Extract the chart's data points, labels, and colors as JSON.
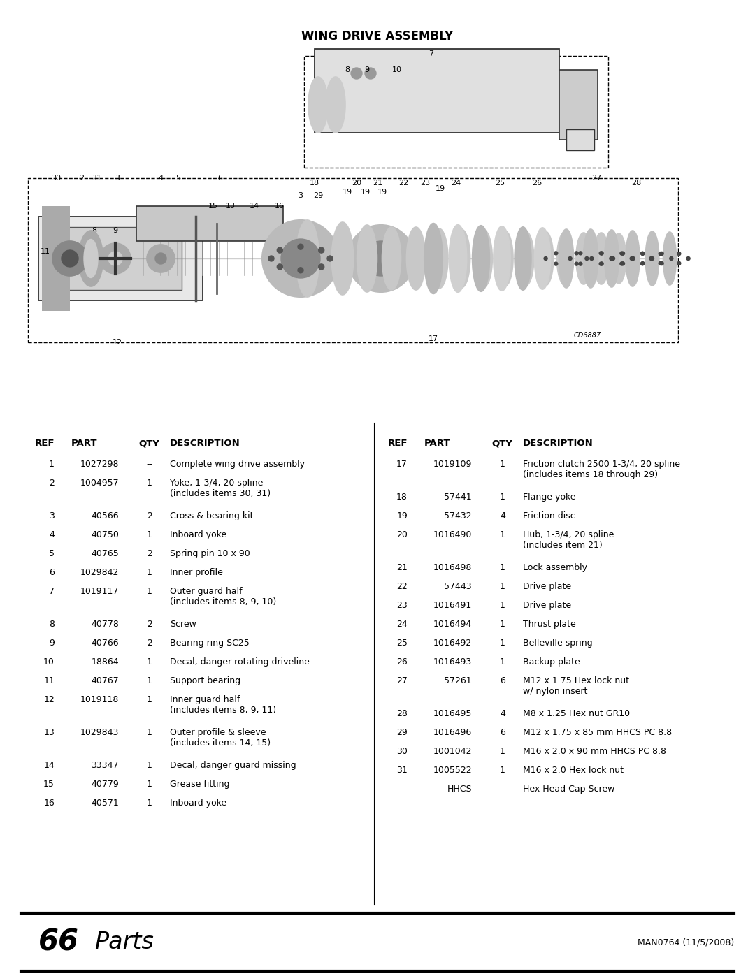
{
  "title": "WING DRIVE ASSEMBLY",
  "bg_color": "#ffffff",
  "footer_left_num": "66",
  "footer_right": "MAN0764 (11/5/2008)",
  "col1_headers": [
    "REF",
    "PART",
    "QTY",
    "DESCRIPTION"
  ],
  "col2_headers": [
    "REF",
    "PART",
    "QTY",
    "DESCRIPTION"
  ],
  "col1_rows": [
    [
      "1",
      "1027298",
      "--",
      "Complete wing drive assembly"
    ],
    [
      "2",
      "1004957",
      "1",
      "Yoke, 1-3/4, 20 spline\n(includes items 30, 31)"
    ],
    [
      "3",
      "40566",
      "2",
      "Cross & bearing kit"
    ],
    [
      "4",
      "40750",
      "1",
      "Inboard yoke"
    ],
    [
      "5",
      "40765",
      "2",
      "Spring pin 10 x 90"
    ],
    [
      "6",
      "1029842",
      "1",
      "Inner profile"
    ],
    [
      "7",
      "1019117",
      "1",
      "Outer guard half\n(includes items 8, 9, 10)"
    ],
    [
      "8",
      "40778",
      "2",
      "Screw"
    ],
    [
      "9",
      "40766",
      "2",
      "Bearing ring SC25"
    ],
    [
      "10",
      "18864",
      "1",
      "Decal, danger rotating driveline"
    ],
    [
      "11",
      "40767",
      "1",
      "Support bearing"
    ],
    [
      "12",
      "1019118",
      "1",
      "Inner guard half\n(includes items 8, 9, 11)"
    ],
    [
      "13",
      "1029843",
      "1",
      "Outer profile & sleeve\n(includes items 14, 15)"
    ],
    [
      "14",
      "33347",
      "1",
      "Decal, danger guard missing"
    ],
    [
      "15",
      "40779",
      "1",
      "Grease fitting"
    ],
    [
      "16",
      "40571",
      "1",
      "Inboard yoke"
    ]
  ],
  "col2_rows": [
    [
      "17",
      "1019109",
      "1",
      "Friction clutch 2500 1-3/4, 20 spline\n(includes items 18 through 29)"
    ],
    [
      "18",
      "57441",
      "1",
      "Flange yoke"
    ],
    [
      "19",
      "57432",
      "4",
      "Friction disc"
    ],
    [
      "20",
      "1016490",
      "1",
      "Hub, 1-3/4, 20 spline\n(includes item 21)"
    ],
    [
      "21",
      "1016498",
      "1",
      "Lock assembly"
    ],
    [
      "22",
      "57443",
      "1",
      "Drive plate"
    ],
    [
      "23",
      "1016491",
      "1",
      "Drive plate"
    ],
    [
      "24",
      "1016494",
      "1",
      "Thrust plate"
    ],
    [
      "25",
      "1016492",
      "1",
      "Belleville spring"
    ],
    [
      "26",
      "1016493",
      "1",
      "Backup plate"
    ],
    [
      "27",
      "57261",
      "6",
      "M12 x 1.75 Hex lock nut\nw/ nylon insert"
    ],
    [
      "28",
      "1016495",
      "4",
      "M8 x 1.25 Hex nut GR10"
    ],
    [
      "29",
      "1016496",
      "6",
      "M12 x 1.75 x 85 mm HHCS PC 8.8"
    ],
    [
      "30",
      "1001042",
      "1",
      "M16 x 2.0 x 90 mm HHCS PC 8.8"
    ],
    [
      "31",
      "1005522",
      "1",
      "M16 x 2.0 Hex lock nut"
    ],
    [
      "",
      "HHCS",
      "",
      "Hex Head Cap Screw"
    ]
  ],
  "text_color": "#000000",
  "header_font_size": 9.5,
  "row_font_size": 9.0
}
